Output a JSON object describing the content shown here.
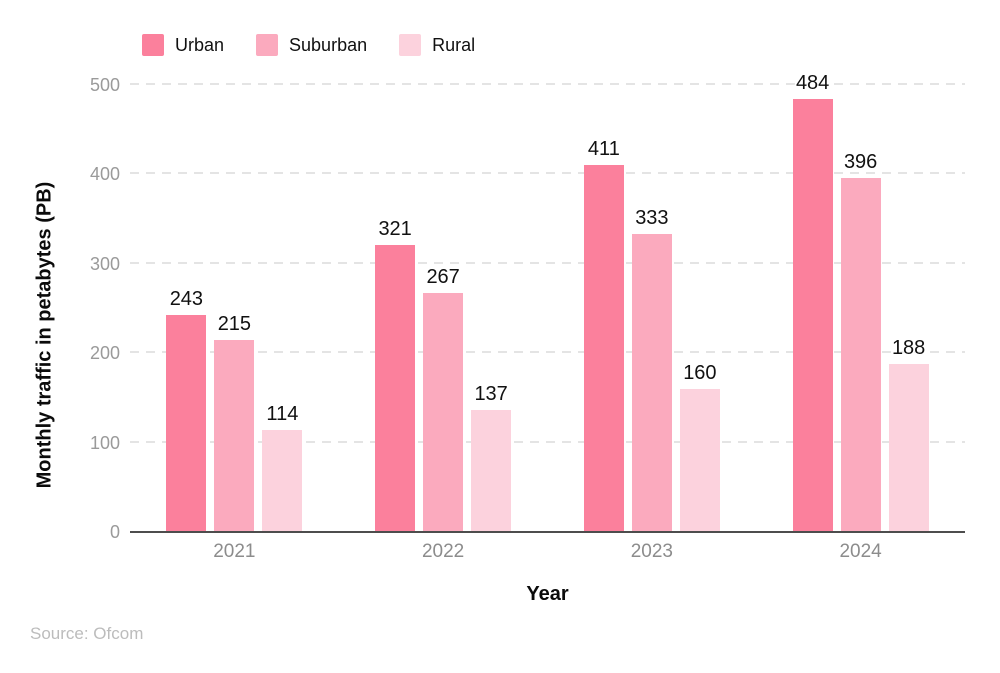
{
  "chart_data": {
    "type": "bar",
    "categories": [
      "2021",
      "2022",
      "2023",
      "2024"
    ],
    "series": [
      {
        "name": "Urban",
        "color": "#fb809c",
        "values": [
          243,
          321,
          411,
          484
        ]
      },
      {
        "name": "Suburban",
        "color": "#fbaabe",
        "values": [
          215,
          267,
          333,
          396
        ]
      },
      {
        "name": "Rural",
        "color": "#fcd2dd",
        "values": [
          114,
          137,
          160,
          188
        ]
      }
    ],
    "xlabel": "Year",
    "ylabel": "Monthly traffic in petabytes (PB)",
    "ylim": [
      0,
      500
    ],
    "yticks": [
      0,
      100,
      200,
      300,
      400,
      500
    ],
    "grid": "horizontal-dashed",
    "gridline_color": "#e4e4e4",
    "axis_line_color": "#4d4d4d",
    "legend_position": "top-left",
    "value_labels": true
  },
  "source": {
    "label": "Source: Ofcom"
  }
}
